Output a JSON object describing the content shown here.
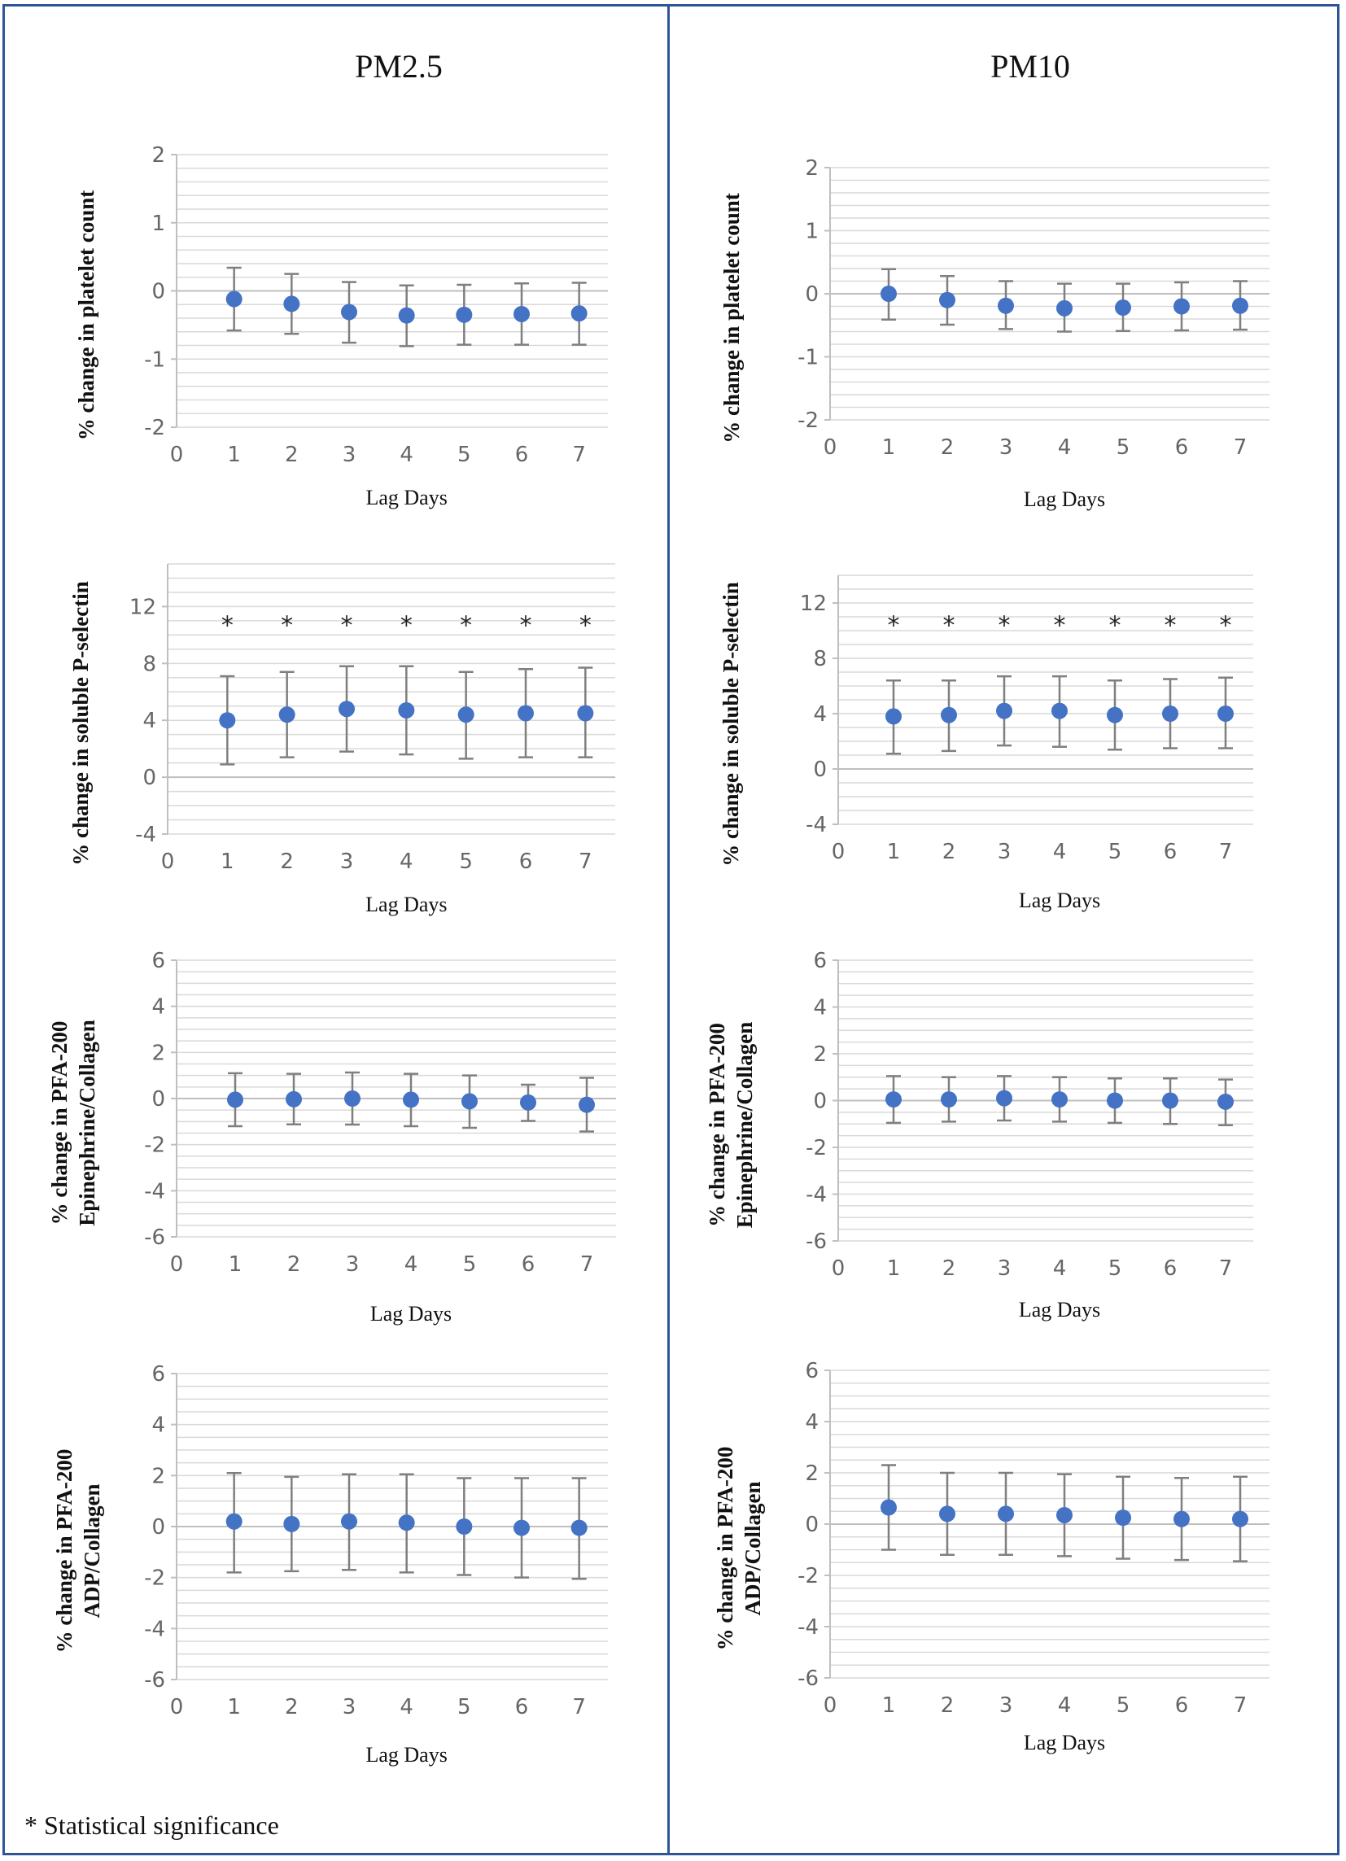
{
  "columns": [
    {
      "title": "PM2.5"
    },
    {
      "title": "PM10"
    }
  ],
  "footnote": "* Statistical significance",
  "colors": {
    "marker": "#4472c4",
    "errorbar": "#7f7f7f",
    "frame": "#2f5597",
    "grid": "#d9d9d9"
  },
  "chart_data": [
    {
      "type": "scatter",
      "pollutant": "PM2.5",
      "ylabel_lines": [
        "% change in platelet count"
      ],
      "xlabel": "Lag Days",
      "x": [
        1,
        2,
        3,
        4,
        5,
        6,
        7
      ],
      "y": [
        -0.12,
        -0.19,
        -0.31,
        -0.36,
        -0.35,
        -0.34,
        -0.33
      ],
      "ci_low": [
        -0.58,
        -0.63,
        -0.76,
        -0.81,
        -0.79,
        -0.79,
        -0.79
      ],
      "ci_high": [
        0.34,
        0.25,
        0.13,
        0.08,
        0.09,
        0.11,
        0.12
      ],
      "ylim": [
        -2,
        2
      ],
      "yticks": [
        -2,
        -1,
        0,
        1,
        2
      ],
      "xlim": [
        0,
        7.5
      ],
      "xticks": [
        0,
        1,
        2,
        3,
        4,
        5,
        6,
        7
      ],
      "significant": [
        false,
        false,
        false,
        false,
        false,
        false,
        false
      ],
      "minor_step": 0.2
    },
    {
      "type": "scatter",
      "pollutant": "PM10",
      "ylabel_lines": [
        "% change in platelet count"
      ],
      "xlabel": "Lag Days",
      "x": [
        1,
        2,
        3,
        4,
        5,
        6,
        7
      ],
      "y": [
        0.0,
        -0.1,
        -0.19,
        -0.23,
        -0.22,
        -0.2,
        -0.19
      ],
      "ci_low": [
        -0.41,
        -0.49,
        -0.56,
        -0.6,
        -0.59,
        -0.58,
        -0.57
      ],
      "ci_high": [
        0.39,
        0.28,
        0.2,
        0.16,
        0.16,
        0.18,
        0.2
      ],
      "ylim": [
        -2,
        2
      ],
      "yticks": [
        -2,
        -1,
        0,
        1,
        2
      ],
      "xlim": [
        0,
        7.5
      ],
      "xticks": [
        0,
        1,
        2,
        3,
        4,
        5,
        6,
        7
      ],
      "significant": [
        false,
        false,
        false,
        false,
        false,
        false,
        false
      ],
      "minor_step": 0.2
    },
    {
      "type": "scatter",
      "pollutant": "PM2.5",
      "ylabel_lines": [
        "% change in soluble P-selectin"
      ],
      "xlabel": "Lag Days",
      "x": [
        1,
        2,
        3,
        4,
        5,
        6,
        7
      ],
      "y": [
        4.0,
        4.4,
        4.8,
        4.7,
        4.4,
        4.5,
        4.5
      ],
      "ci_low": [
        0.9,
        1.4,
        1.8,
        1.6,
        1.3,
        1.4,
        1.4
      ],
      "ci_high": [
        7.1,
        7.4,
        7.8,
        7.8,
        7.4,
        7.6,
        7.7
      ],
      "ylim": [
        -4,
        15
      ],
      "yticks": [
        -4,
        0,
        4,
        8,
        12
      ],
      "xlim": [
        0,
        7.5
      ],
      "xticks": [
        0,
        1,
        2,
        3,
        4,
        5,
        6,
        7
      ],
      "significant": [
        true,
        true,
        true,
        true,
        true,
        true,
        true
      ],
      "star_y": 10.8,
      "minor_step": 1
    },
    {
      "type": "scatter",
      "pollutant": "PM10",
      "ylabel_lines": [
        "% change in soluble P-selectin"
      ],
      "xlabel": "Lag Days",
      "x": [
        1,
        2,
        3,
        4,
        5,
        6,
        7
      ],
      "y": [
        3.8,
        3.9,
        4.2,
        4.2,
        3.9,
        4.0,
        4.0
      ],
      "ci_low": [
        1.1,
        1.3,
        1.7,
        1.6,
        1.4,
        1.5,
        1.5
      ],
      "ci_high": [
        6.4,
        6.4,
        6.7,
        6.7,
        6.4,
        6.5,
        6.6
      ],
      "ylim": [
        -4,
        14
      ],
      "yticks": [
        -4,
        0,
        4,
        8,
        12
      ],
      "xlim": [
        0,
        7.5
      ],
      "xticks": [
        0,
        1,
        2,
        3,
        4,
        5,
        6,
        7
      ],
      "significant": [
        true,
        true,
        true,
        true,
        true,
        true,
        true
      ],
      "star_y": 10.5,
      "minor_step": 1
    },
    {
      "type": "scatter",
      "pollutant": "PM2.5",
      "ylabel_lines": [
        "% change in PFA-200",
        "Epinephrine/Collagen"
      ],
      "xlabel": "Lag Days",
      "x": [
        1,
        2,
        3,
        4,
        5,
        6,
        7
      ],
      "y": [
        -0.05,
        -0.03,
        0.0,
        -0.05,
        -0.12,
        -0.17,
        -0.27
      ],
      "ci_low": [
        -1.2,
        -1.12,
        -1.13,
        -1.2,
        -1.27,
        -0.97,
        -1.43
      ],
      "ci_high": [
        1.1,
        1.07,
        1.13,
        1.07,
        1.0,
        0.6,
        0.9
      ],
      "ylim": [
        -6,
        6
      ],
      "yticks": [
        -6,
        -4,
        -2,
        0,
        2,
        4,
        6
      ],
      "xlim": [
        0,
        7.5
      ],
      "xticks": [
        0,
        1,
        2,
        3,
        4,
        5,
        6,
        7
      ],
      "significant": [
        false,
        false,
        false,
        false,
        false,
        false,
        false
      ],
      "minor_step": 0.5
    },
    {
      "type": "scatter",
      "pollutant": "PM10",
      "ylabel_lines": [
        "% change in PFA-200",
        "Epinephrine/Collagen"
      ],
      "xlabel": "Lag Days",
      "x": [
        1,
        2,
        3,
        4,
        5,
        6,
        7
      ],
      "y": [
        0.05,
        0.05,
        0.1,
        0.05,
        0.0,
        0.0,
        -0.05
      ],
      "ci_low": [
        -0.95,
        -0.9,
        -0.85,
        -0.9,
        -0.95,
        -1.0,
        -1.05
      ],
      "ci_high": [
        1.05,
        1.0,
        1.05,
        1.0,
        0.95,
        0.95,
        0.9
      ],
      "ylim": [
        -6,
        6
      ],
      "yticks": [
        -6,
        -4,
        -2,
        0,
        2,
        4,
        6
      ],
      "xlim": [
        0,
        7.5
      ],
      "xticks": [
        0,
        1,
        2,
        3,
        4,
        5,
        6,
        7
      ],
      "significant": [
        false,
        false,
        false,
        false,
        false,
        false,
        false
      ],
      "minor_step": 0.5
    },
    {
      "type": "scatter",
      "pollutant": "PM2.5",
      "ylabel_lines": [
        "% change in PFA-200",
        "ADP/Collagen"
      ],
      "xlabel": "Lag Days",
      "x": [
        1,
        2,
        3,
        4,
        5,
        6,
        7
      ],
      "y": [
        0.2,
        0.1,
        0.2,
        0.15,
        0.0,
        -0.05,
        -0.05
      ],
      "ci_low": [
        -1.8,
        -1.75,
        -1.7,
        -1.8,
        -1.9,
        -2.0,
        -2.05
      ],
      "ci_high": [
        2.1,
        1.95,
        2.05,
        2.05,
        1.9,
        1.9,
        1.9
      ],
      "ylim": [
        -6,
        6
      ],
      "yticks": [
        -6,
        -4,
        -2,
        0,
        2,
        4,
        6
      ],
      "xlim": [
        0,
        7.5
      ],
      "xticks": [
        0,
        1,
        2,
        3,
        4,
        5,
        6,
        7
      ],
      "significant": [
        false,
        false,
        false,
        false,
        false,
        false,
        false
      ],
      "minor_step": 0.5
    },
    {
      "type": "scatter",
      "pollutant": "PM10",
      "ylabel_lines": [
        "% change in PFA-200",
        "ADP/Collagen"
      ],
      "xlabel": "Lag Days",
      "x": [
        1,
        2,
        3,
        4,
        5,
        6,
        7
      ],
      "y": [
        0.65,
        0.4,
        0.4,
        0.35,
        0.25,
        0.2,
        0.2
      ],
      "ci_low": [
        -1.0,
        -1.2,
        -1.2,
        -1.25,
        -1.35,
        -1.4,
        -1.45
      ],
      "ci_high": [
        2.3,
        2.0,
        2.0,
        1.95,
        1.85,
        1.8,
        1.85
      ],
      "ylim": [
        -6,
        6
      ],
      "yticks": [
        -6,
        -4,
        -2,
        0,
        2,
        4,
        6
      ],
      "xlim": [
        0,
        7.5
      ],
      "xticks": [
        0,
        1,
        2,
        3,
        4,
        5,
        6,
        7
      ],
      "significant": [
        false,
        false,
        false,
        false,
        false,
        false,
        false
      ],
      "minor_step": 0.5
    }
  ]
}
